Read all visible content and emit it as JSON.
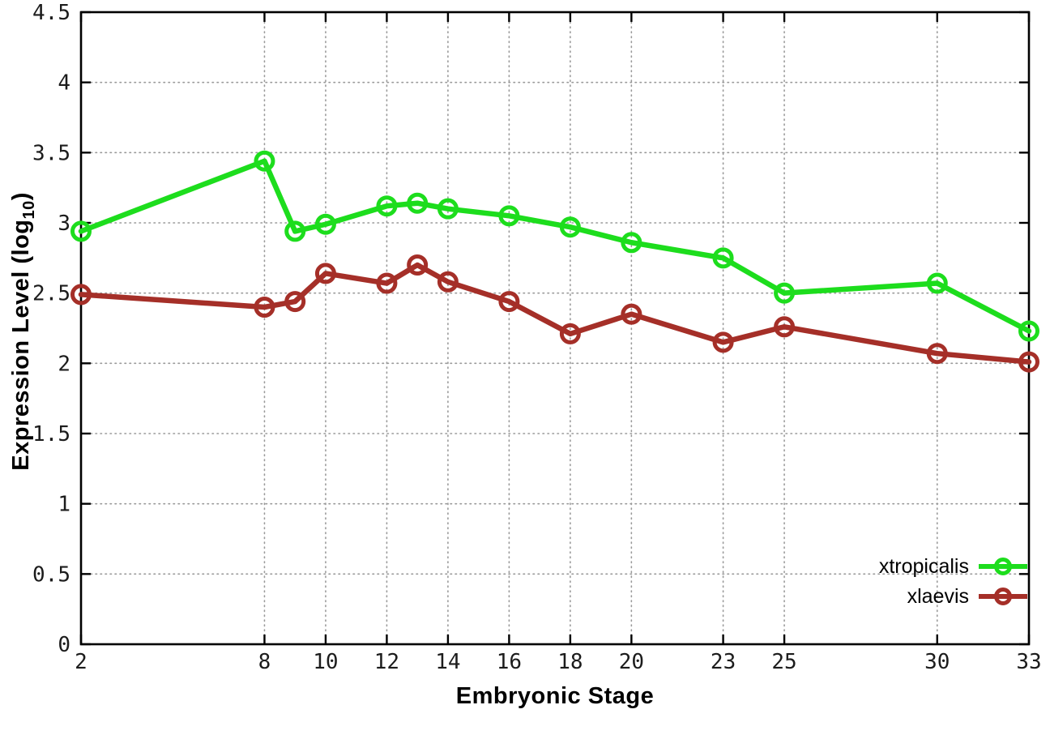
{
  "chart_data": {
    "type": "line",
    "title": "",
    "xlabel": "Embryonic Stage",
    "ylabel": {
      "text": "Expression Level (log",
      "sub": "10",
      "end": ")"
    },
    "xlim": [
      2,
      33
    ],
    "ylim": [
      0,
      4.5
    ],
    "grid": true,
    "legend_position": "inside bottom-right",
    "xticks": [
      2,
      8,
      10,
      12,
      14,
      16,
      18,
      20,
      23,
      25,
      30,
      33
    ],
    "yticks": [
      0,
      0.5,
      1,
      1.5,
      2,
      2.5,
      3,
      3.5,
      4,
      4.5
    ],
    "x": [
      2,
      8,
      9,
      10,
      12,
      13,
      14,
      16,
      18,
      20,
      23,
      25,
      30,
      33
    ],
    "series": [
      {
        "name": "xtropicalis",
        "color": "#1ddd1d",
        "values": [
          2.94,
          3.44,
          2.94,
          2.99,
          3.12,
          3.14,
          3.1,
          3.05,
          2.97,
          2.86,
          2.75,
          2.5,
          2.57,
          2.23
        ]
      },
      {
        "name": "xlaevis",
        "color": "#a52f28",
        "values": [
          2.49,
          2.4,
          2.44,
          2.64,
          2.57,
          2.7,
          2.58,
          2.44,
          2.21,
          2.35,
          2.15,
          2.26,
          2.07,
          2.01
        ]
      }
    ]
  },
  "legend": {
    "entries": [
      {
        "label": "xtropicalis"
      },
      {
        "label": "xlaevis"
      }
    ]
  }
}
